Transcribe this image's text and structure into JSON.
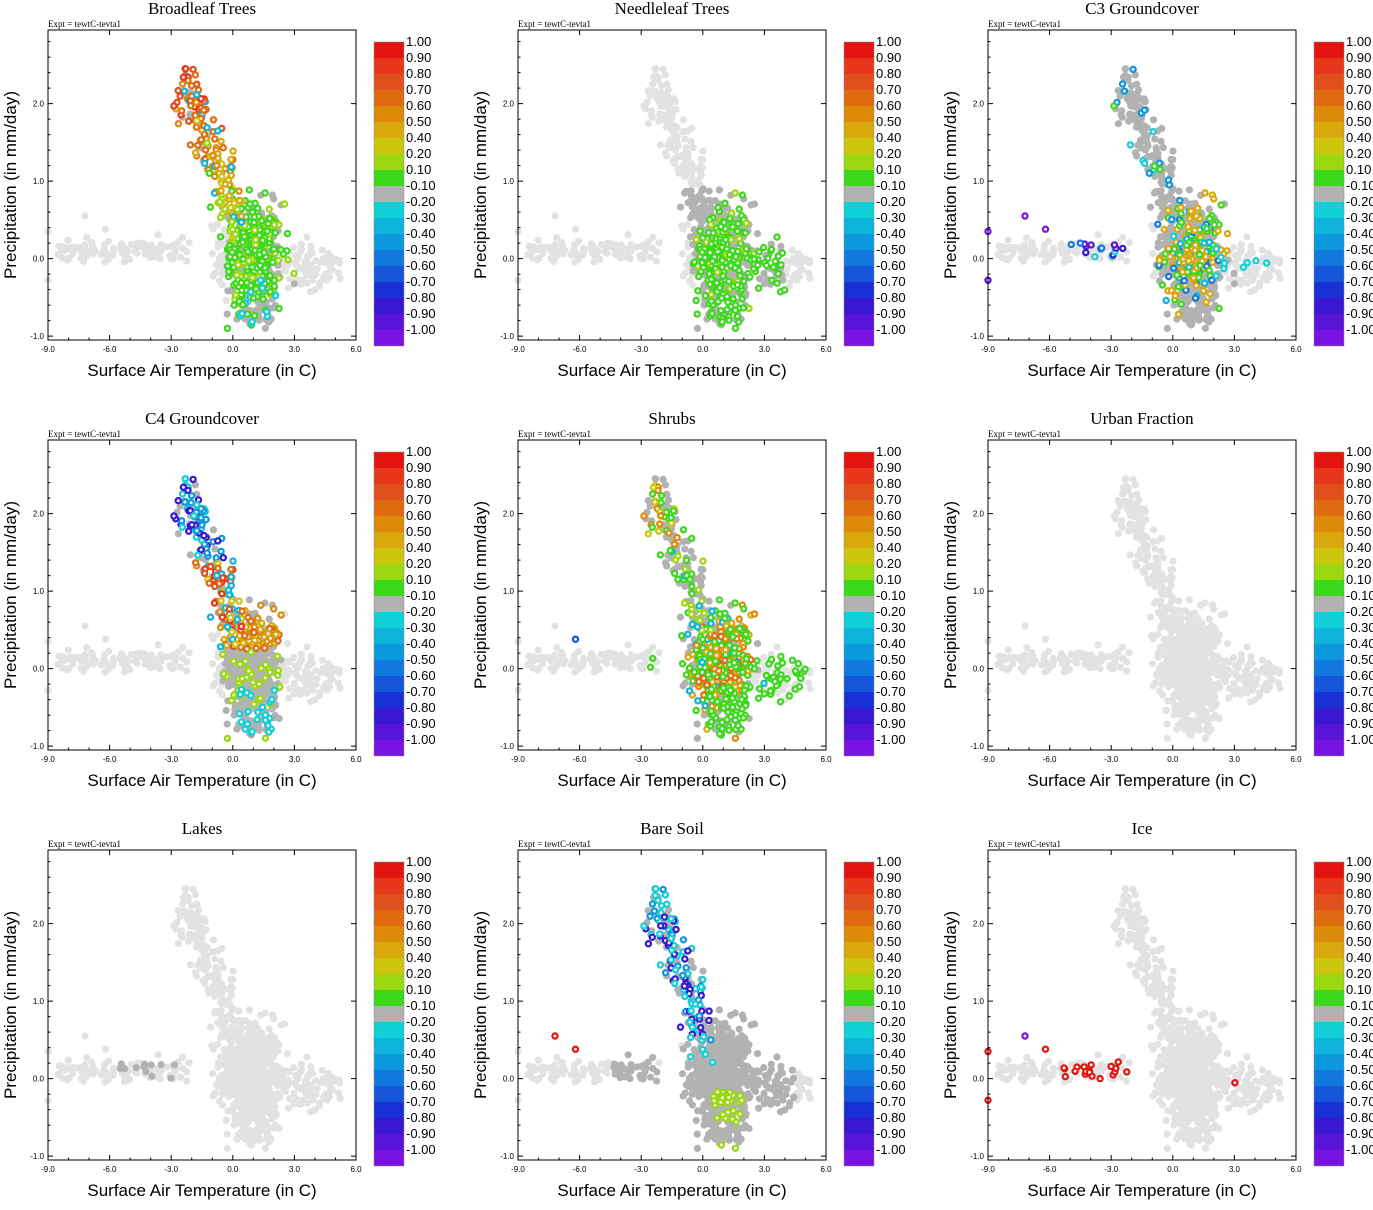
{
  "figure": {
    "experiment_label": "Expt = tewtC-tevta1",
    "xlabel": "Surface Air Temperature (in C)",
    "ylabel": "Precipitation (in mm/day)"
  },
  "chart_data": {
    "type": "scatter",
    "description_axes": {
      "xlim": [
        -9.0,
        6.0
      ],
      "ylim": [
        -1.05,
        2.95
      ],
      "x_ticks": [
        "-9.0",
        "-6.0",
        "-3.0",
        "0.0",
        "3.0",
        "6.0"
      ],
      "y_ticks": [
        "-1.0",
        "0.0",
        "1.0",
        "2.0"
      ]
    },
    "colorbar": {
      "labels": [
        "1.00",
        "0.90",
        "0.80",
        "0.70",
        "0.60",
        "0.50",
        "0.40",
        "0.20",
        "0.10",
        "-0.10",
        "-0.20",
        "-0.30",
        "-0.40",
        "-0.50",
        "-0.60",
        "-0.70",
        "-0.80",
        "-0.90",
        "-1.00"
      ],
      "colors": [
        "#e3140f",
        "#e8361a",
        "#e0501c",
        "#e06a10",
        "#dc8a08",
        "#d9a80c",
        "#cdc60c",
        "#9bd80f",
        "#3cd81c",
        "#b2b2b2",
        "#11cfd6",
        "#0eb4dc",
        "#0c98dc",
        "#1179de",
        "#1555da",
        "#1830d4",
        "#3a18d2",
        "#5a14d8",
        "#7a12e4"
      ]
    },
    "background_cloud_color": "#e2e2e2",
    "panels": [
      {
        "title": "Broadleaf Trees",
        "pattern": "broadleaf"
      },
      {
        "title": "Needleleaf Trees",
        "pattern": "needleleaf"
      },
      {
        "title": "C3 Groundcover",
        "pattern": "c3"
      },
      {
        "title": "C4 Groundcover",
        "pattern": "c4"
      },
      {
        "title": "Shrubs",
        "pattern": "shrubs"
      },
      {
        "title": "Urban Fraction",
        "pattern": "urban"
      },
      {
        "title": "Lakes",
        "pattern": "lakes"
      },
      {
        "title": "Bare Soil",
        "pattern": "bare"
      },
      {
        "title": "Ice",
        "pattern": "ice"
      }
    ]
  }
}
